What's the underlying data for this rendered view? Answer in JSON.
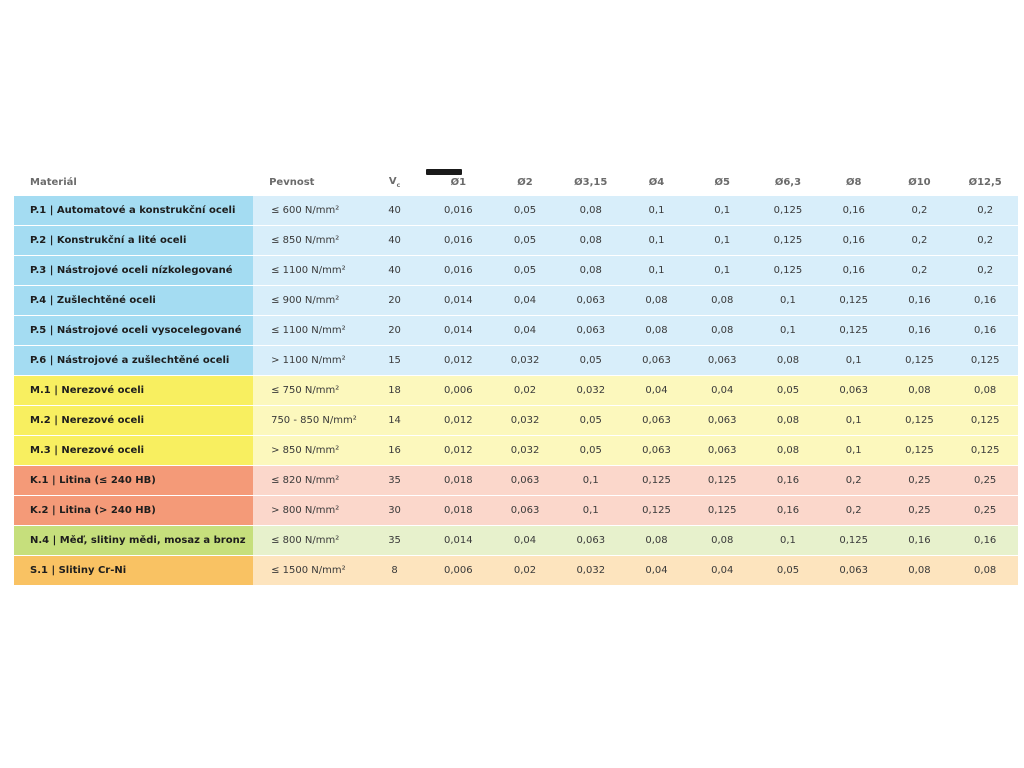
{
  "header": {
    "material": "Materiál",
    "strength": "Pevnost",
    "vc_main": "V",
    "vc_sub": "c",
    "diameters": [
      "Ø1",
      "Ø2",
      "Ø3,15",
      "Ø4",
      "Ø5",
      "Ø6,3",
      "Ø8",
      "Ø10",
      "Ø12,5"
    ]
  },
  "rows": [
    {
      "group": "P",
      "material": "P.1 | Automatové a konstrukční oceli",
      "strength": "≤ 600 N/mm²",
      "vc": "40",
      "values": [
        "0,016",
        "0,05",
        "0,08",
        "0,1",
        "0,1",
        "0,125",
        "0,16",
        "0,2",
        "0,2"
      ]
    },
    {
      "group": "P",
      "material": "P.2 | Konstrukční a lité oceli",
      "strength": "≤ 850 N/mm²",
      "vc": "40",
      "values": [
        "0,016",
        "0,05",
        "0,08",
        "0,1",
        "0,1",
        "0,125",
        "0,16",
        "0,2",
        "0,2"
      ]
    },
    {
      "group": "P",
      "material": "P.3 | Nástrojové oceli nízkolegované",
      "strength": "≤ 1100 N/mm²",
      "vc": "40",
      "values": [
        "0,016",
        "0,05",
        "0,08",
        "0,1",
        "0,1",
        "0,125",
        "0,16",
        "0,2",
        "0,2"
      ]
    },
    {
      "group": "P",
      "material": "P.4 | Zušlechtěné oceli",
      "strength": "≤ 900 N/mm²",
      "vc": "20",
      "values": [
        "0,014",
        "0,04",
        "0,063",
        "0,08",
        "0,08",
        "0,1",
        "0,125",
        "0,16",
        "0,16"
      ]
    },
    {
      "group": "P",
      "material": "P.5 | Nástrojové oceli vysocelegované",
      "strength": "≤ 1100 N/mm²",
      "vc": "20",
      "values": [
        "0,014",
        "0,04",
        "0,063",
        "0,08",
        "0,08",
        "0,1",
        "0,125",
        "0,16",
        "0,16"
      ]
    },
    {
      "group": "P",
      "material": "P.6 | Nástrojové a zušlechtěné oceli",
      "strength": "> 1100 N/mm²",
      "vc": "15",
      "values": [
        "0,012",
        "0,032",
        "0,05",
        "0,063",
        "0,063",
        "0,08",
        "0,1",
        "0,125",
        "0,125"
      ]
    },
    {
      "group": "M",
      "material": "M.1 | Nerezové oceli",
      "strength": "≤ 750 N/mm²",
      "vc": "18",
      "values": [
        "0,006",
        "0,02",
        "0,032",
        "0,04",
        "0,04",
        "0,05",
        "0,063",
        "0,08",
        "0,08"
      ]
    },
    {
      "group": "M",
      "material": "M.2 | Nerezové oceli",
      "strength": "750 - 850 N/mm²",
      "vc": "14",
      "values": [
        "0,012",
        "0,032",
        "0,05",
        "0,063",
        "0,063",
        "0,08",
        "0,1",
        "0,125",
        "0,125"
      ]
    },
    {
      "group": "M",
      "material": "M.3 | Nerezové oceli",
      "strength": "> 850 N/mm²",
      "vc": "16",
      "values": [
        "0,012",
        "0,032",
        "0,05",
        "0,063",
        "0,063",
        "0,08",
        "0,1",
        "0,125",
        "0,125"
      ]
    },
    {
      "group": "K",
      "material": "K.1 | Litina (≤ 240 HB)",
      "strength": "≤ 820 N/mm²",
      "vc": "35",
      "values": [
        "0,018",
        "0,063",
        "0,1",
        "0,125",
        "0,125",
        "0,16",
        "0,2",
        "0,25",
        "0,25"
      ]
    },
    {
      "group": "K",
      "material": "K.2 | Litina (> 240 HB)",
      "strength": "> 800 N/mm²",
      "vc": "30",
      "values": [
        "0,018",
        "0,063",
        "0,1",
        "0,125",
        "0,125",
        "0,16",
        "0,2",
        "0,25",
        "0,25"
      ]
    },
    {
      "group": "N",
      "material": "N.4 | Měď, slitiny mědi, mosaz a bronz",
      "strength": "≤ 800 N/mm²",
      "vc": "35",
      "values": [
        "0,014",
        "0,04",
        "0,063",
        "0,08",
        "0,08",
        "0,1",
        "0,125",
        "0,16",
        "0,16"
      ]
    },
    {
      "group": "S",
      "material": "S.1 | Slitiny Cr-Ni",
      "strength": "≤ 1500 N/mm²",
      "vc": "8",
      "values": [
        "0,006",
        "0,02",
        "0,032",
        "0,04",
        "0,04",
        "0,05",
        "0,063",
        "0,08",
        "0,08"
      ]
    }
  ]
}
